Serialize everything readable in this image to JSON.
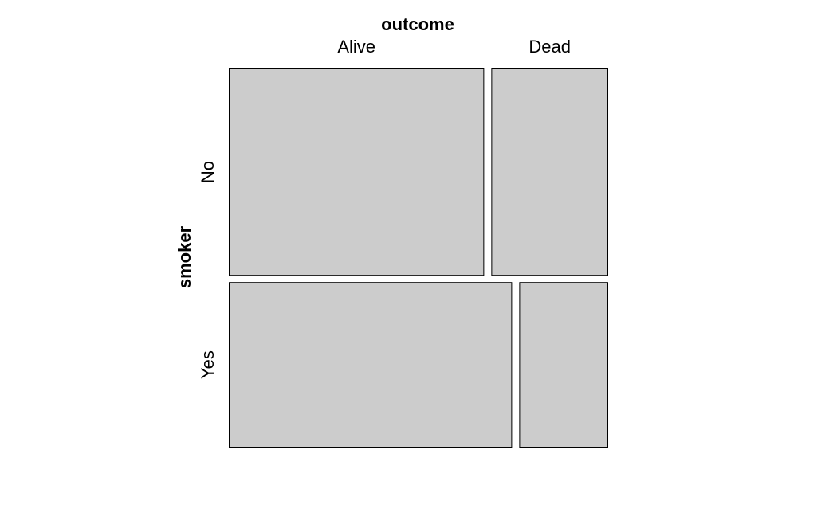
{
  "chart_data": {
    "type": "mosaic",
    "column_variable": "outcome",
    "row_variable": "smoker",
    "columns": [
      "Alive",
      "Dead"
    ],
    "rows": [
      "No",
      "Yes"
    ],
    "row_proportions": [
      0.556,
      0.444
    ],
    "cells": [
      {
        "row": "No",
        "column": "Alive",
        "proportion_within_row": 0.686
      },
      {
        "row": "No",
        "column": "Dead",
        "proportion_within_row": 0.314
      },
      {
        "row": "Yes",
        "column": "Alive",
        "proportion_within_row": 0.761
      },
      {
        "row": "Yes",
        "column": "Dead",
        "proportion_within_row": 0.239
      }
    ],
    "column_label_proportions": [
      0.686,
      0.314
    ],
    "tile_color": "#cccccc"
  }
}
